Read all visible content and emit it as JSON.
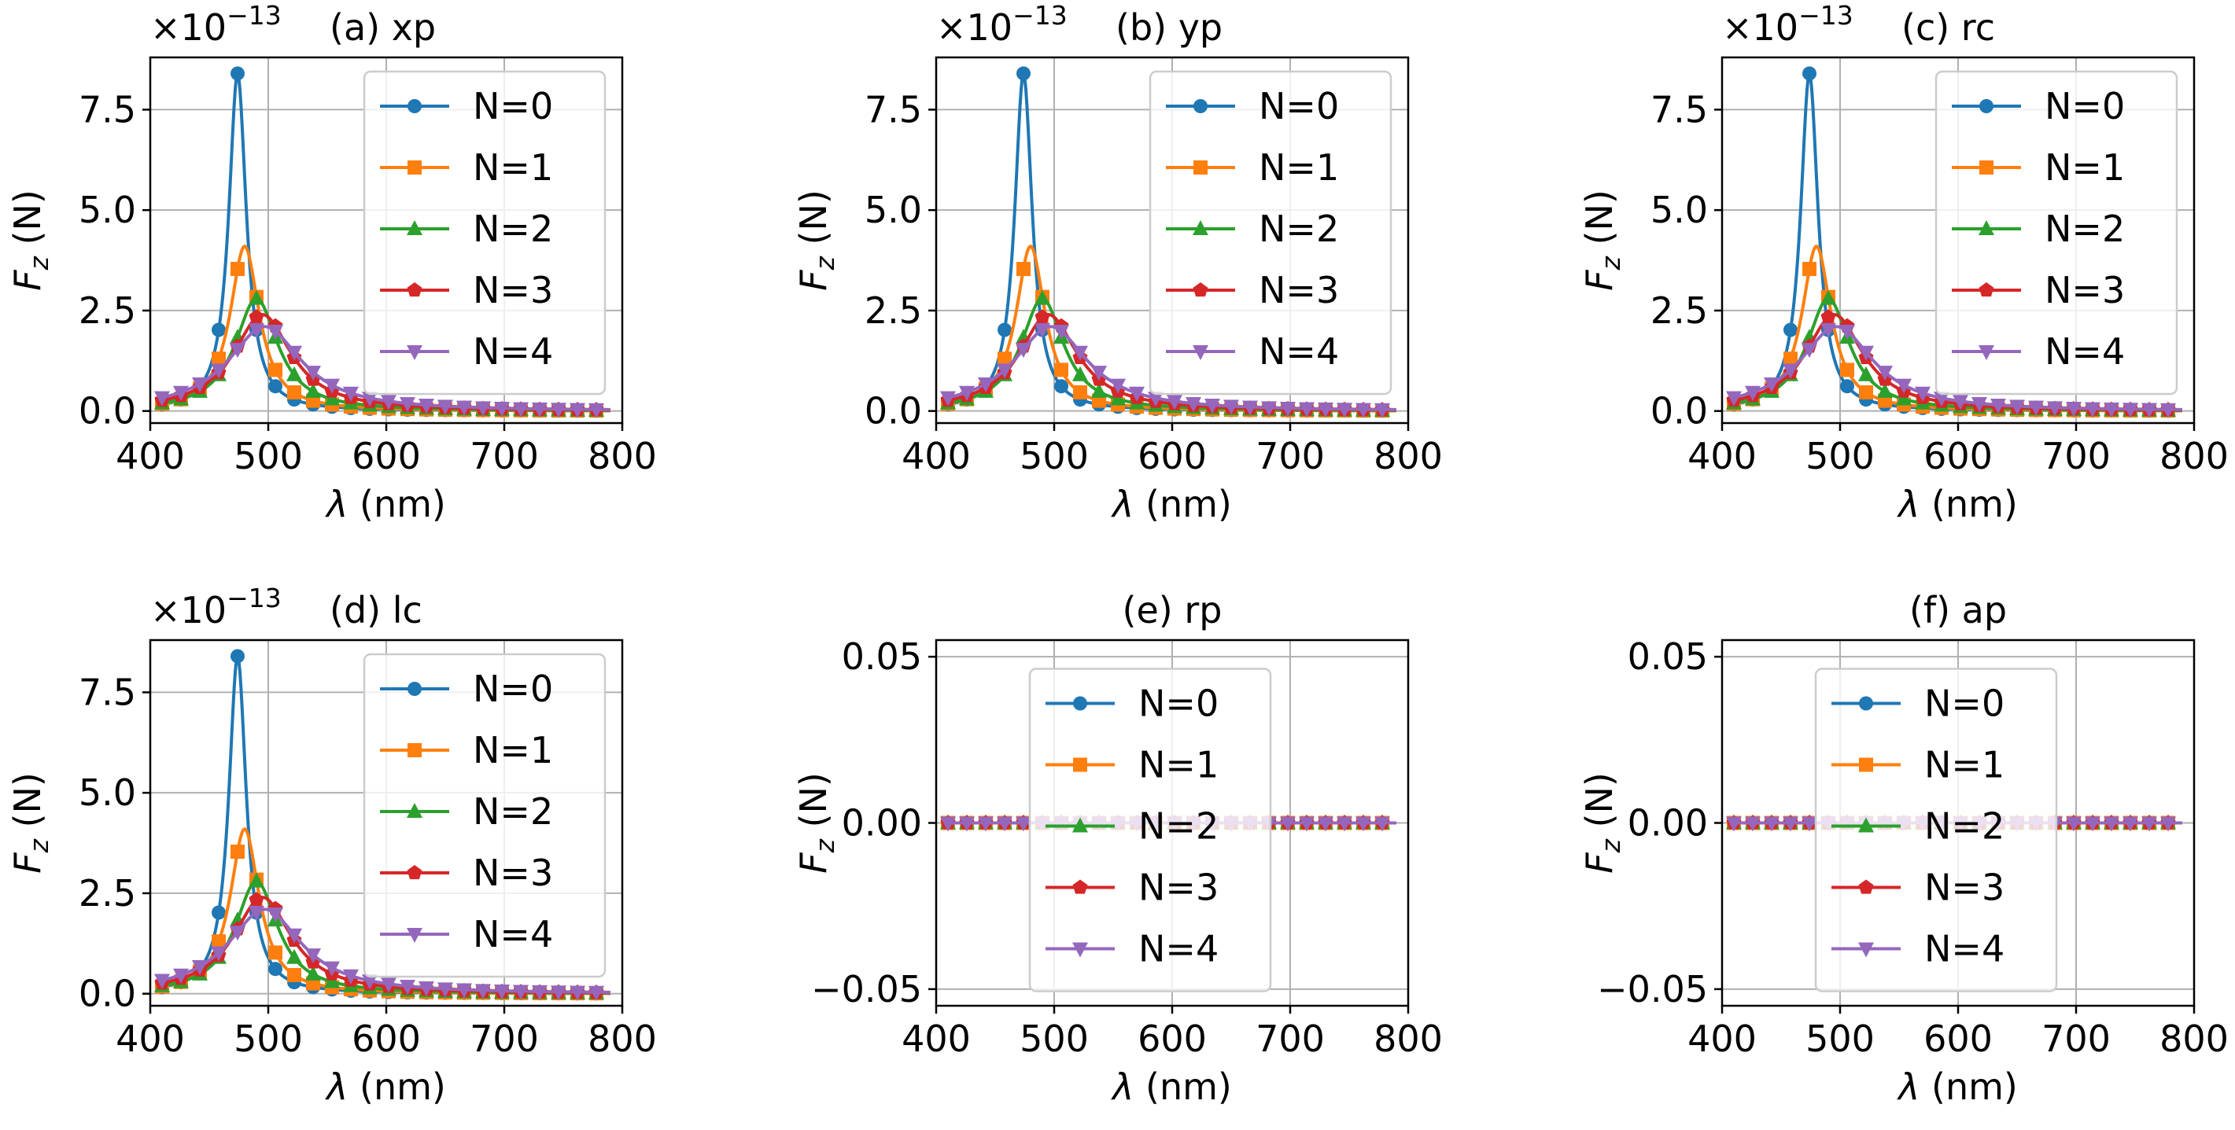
{
  "figure": {
    "y_unit_text": "(N)",
    "series_colors": [
      "#1f77b4",
      "#ff7f0e",
      "#2ca02c",
      "#d62728",
      "#9467bd"
    ],
    "series_markers": [
      "circle",
      "square",
      "triangle-up",
      "pentagon",
      "triangle-down"
    ]
  },
  "chart_data": [
    {
      "type": "line",
      "title": "(a) xp",
      "offset_text": "×10",
      "offset_exp": "−13",
      "xlabel_sym": "λ",
      "xlabel_rest": " (nm)",
      "ylabel_sym": "F",
      "ylabel_sub": "z",
      "ylabel_rest": " (N)",
      "xlim": [
        400,
        800
      ],
      "ylim": [
        -0.3,
        8.8
      ],
      "xticks": [
        400,
        500,
        600,
        700,
        800
      ],
      "yticks": [
        0.0,
        2.5,
        5.0,
        7.5
      ],
      "ytick_labels": [
        "0.0",
        "2.5",
        "5.0",
        "7.5"
      ],
      "legend": [
        "N=0",
        "N=1",
        "N=2",
        "N=3",
        "N=4"
      ],
      "legend_loc": "upper right",
      "series_profile": "resonance",
      "series": [
        {
          "name": "N=0",
          "peak_x": 474,
          "peak_y": 8.4,
          "hw": 9
        },
        {
          "name": "N=1",
          "peak_x": 480,
          "peak_y": 4.1,
          "hw": 15
        },
        {
          "name": "N=2",
          "peak_x": 490,
          "peak_y": 2.8,
          "hw": 22
        },
        {
          "name": "N=3",
          "peak_x": 495,
          "peak_y": 2.4,
          "hw": 30
        },
        {
          "name": "N=4",
          "peak_x": 497,
          "peak_y": 2.1,
          "hw": 38
        }
      ]
    },
    {
      "type": "line",
      "title": "(b) yp",
      "offset_text": "×10",
      "offset_exp": "−13",
      "xlabel_sym": "λ",
      "xlabel_rest": " (nm)",
      "ylabel_sym": "F",
      "ylabel_sub": "z",
      "ylabel_rest": " (N)",
      "xlim": [
        400,
        800
      ],
      "ylim": [
        -0.3,
        8.8
      ],
      "xticks": [
        400,
        500,
        600,
        700,
        800
      ],
      "yticks": [
        0.0,
        2.5,
        5.0,
        7.5
      ],
      "ytick_labels": [
        "0.0",
        "2.5",
        "5.0",
        "7.5"
      ],
      "legend": [
        "N=0",
        "N=1",
        "N=2",
        "N=3",
        "N=4"
      ],
      "legend_loc": "upper right",
      "series_profile": "resonance",
      "series": [
        {
          "name": "N=0",
          "peak_x": 474,
          "peak_y": 8.4,
          "hw": 9
        },
        {
          "name": "N=1",
          "peak_x": 480,
          "peak_y": 4.1,
          "hw": 15
        },
        {
          "name": "N=2",
          "peak_x": 490,
          "peak_y": 2.8,
          "hw": 22
        },
        {
          "name": "N=3",
          "peak_x": 495,
          "peak_y": 2.4,
          "hw": 30
        },
        {
          "name": "N=4",
          "peak_x": 497,
          "peak_y": 2.1,
          "hw": 38
        }
      ]
    },
    {
      "type": "line",
      "title": "(c) rc",
      "offset_text": "×10",
      "offset_exp": "−13",
      "xlabel_sym": "λ",
      "xlabel_rest": " (nm)",
      "ylabel_sym": "F",
      "ylabel_sub": "z",
      "ylabel_rest": " (N)",
      "xlim": [
        400,
        800
      ],
      "ylim": [
        -0.3,
        8.8
      ],
      "xticks": [
        400,
        500,
        600,
        700,
        800
      ],
      "yticks": [
        0.0,
        2.5,
        5.0,
        7.5
      ],
      "ytick_labels": [
        "0.0",
        "2.5",
        "5.0",
        "7.5"
      ],
      "legend": [
        "N=0",
        "N=1",
        "N=2",
        "N=3",
        "N=4"
      ],
      "legend_loc": "upper right",
      "series_profile": "resonance",
      "series": [
        {
          "name": "N=0",
          "peak_x": 474,
          "peak_y": 8.4,
          "hw": 9
        },
        {
          "name": "N=1",
          "peak_x": 480,
          "peak_y": 4.1,
          "hw": 15
        },
        {
          "name": "N=2",
          "peak_x": 490,
          "peak_y": 2.8,
          "hw": 22
        },
        {
          "name": "N=3",
          "peak_x": 495,
          "peak_y": 2.4,
          "hw": 30
        },
        {
          "name": "N=4",
          "peak_x": 497,
          "peak_y": 2.1,
          "hw": 38
        }
      ]
    },
    {
      "type": "line",
      "title": "(d) lc",
      "offset_text": "×10",
      "offset_exp": "−13",
      "xlabel_sym": "λ",
      "xlabel_rest": " (nm)",
      "ylabel_sym": "F",
      "ylabel_sub": "z",
      "ylabel_rest": " (N)",
      "xlim": [
        400,
        800
      ],
      "ylim": [
        -0.3,
        8.8
      ],
      "xticks": [
        400,
        500,
        600,
        700,
        800
      ],
      "yticks": [
        0.0,
        2.5,
        5.0,
        7.5
      ],
      "ytick_labels": [
        "0.0",
        "2.5",
        "5.0",
        "7.5"
      ],
      "legend": [
        "N=0",
        "N=1",
        "N=2",
        "N=3",
        "N=4"
      ],
      "legend_loc": "upper right",
      "series_profile": "resonance",
      "series": [
        {
          "name": "N=0",
          "peak_x": 474,
          "peak_y": 8.4,
          "hw": 9
        },
        {
          "name": "N=1",
          "peak_x": 480,
          "peak_y": 4.1,
          "hw": 15
        },
        {
          "name": "N=2",
          "peak_x": 490,
          "peak_y": 2.8,
          "hw": 22
        },
        {
          "name": "N=3",
          "peak_x": 495,
          "peak_y": 2.4,
          "hw": 30
        },
        {
          "name": "N=4",
          "peak_x": 497,
          "peak_y": 2.1,
          "hw": 38
        }
      ]
    },
    {
      "type": "line",
      "title": "(e) rp",
      "offset_text": "",
      "offset_exp": "",
      "xlabel_sym": "λ",
      "xlabel_rest": " (nm)",
      "ylabel_sym": "F",
      "ylabel_sub": "z",
      "ylabel_rest": " (N)",
      "xlim": [
        400,
        800
      ],
      "ylim": [
        -0.055,
        0.055
      ],
      "xticks": [
        400,
        500,
        600,
        700,
        800
      ],
      "yticks": [
        -0.05,
        0.0,
        0.05
      ],
      "ytick_labels": [
        "−0.05",
        "0.00",
        "0.05"
      ],
      "legend": [
        "N=0",
        "N=1",
        "N=2",
        "N=3",
        "N=4"
      ],
      "legend_loc": "center",
      "series_profile": "zero",
      "series": [
        {
          "name": "N=0",
          "constant": 0
        },
        {
          "name": "N=1",
          "constant": 0
        },
        {
          "name": "N=2",
          "constant": 0
        },
        {
          "name": "N=3",
          "constant": 0
        },
        {
          "name": "N=4",
          "constant": 0
        }
      ]
    },
    {
      "type": "line",
      "title": "(f) ap",
      "offset_text": "",
      "offset_exp": "",
      "xlabel_sym": "λ",
      "xlabel_rest": " (nm)",
      "ylabel_sym": "F",
      "ylabel_sub": "z",
      "ylabel_rest": " (N)",
      "xlim": [
        400,
        800
      ],
      "ylim": [
        -0.055,
        0.055
      ],
      "xticks": [
        400,
        500,
        600,
        700,
        800
      ],
      "yticks": [
        -0.05,
        0.0,
        0.05
      ],
      "ytick_labels": [
        "−0.05",
        "0.00",
        "0.05"
      ],
      "legend": [
        "N=0",
        "N=1",
        "N=2",
        "N=3",
        "N=4"
      ],
      "legend_loc": "center",
      "series_profile": "zero",
      "series": [
        {
          "name": "N=0",
          "constant": 0
        },
        {
          "name": "N=1",
          "constant": 0
        },
        {
          "name": "N=2",
          "constant": 0
        },
        {
          "name": "N=3",
          "constant": 0
        },
        {
          "name": "N=4",
          "constant": 0
        }
      ]
    }
  ]
}
